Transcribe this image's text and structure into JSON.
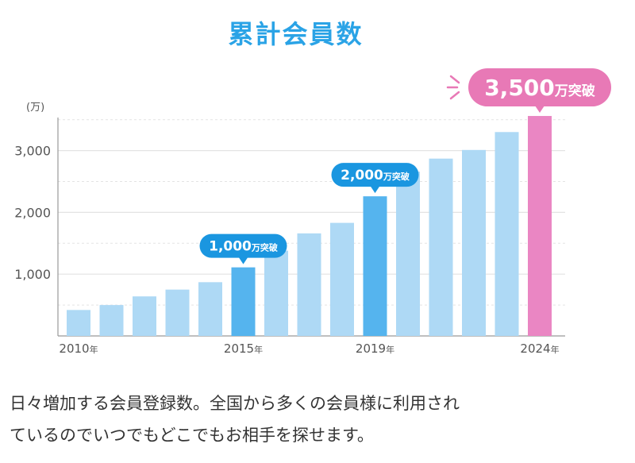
{
  "header": {
    "title": "累計会員数"
  },
  "chart_data": {
    "type": "bar",
    "unit_label": "(万)",
    "categories": [
      "2010",
      "2011",
      "2012",
      "2013",
      "2014",
      "2015",
      "2016",
      "2017",
      "2018",
      "2019",
      "2020",
      "2021",
      "2022",
      "2023",
      "2024"
    ],
    "values": [
      420,
      500,
      640,
      750,
      870,
      1110,
      1380,
      1660,
      1830,
      2260,
      2660,
      2870,
      3010,
      3300,
      3560
    ],
    "x_tick_labels": [
      {
        "index": 0,
        "text": "2010",
        "suffix": "年"
      },
      {
        "index": 5,
        "text": "2015",
        "suffix": "年"
      },
      {
        "index": 9,
        "text": "2019",
        "suffix": "年"
      },
      {
        "index": 14,
        "text": "2024",
        "suffix": "年"
      }
    ],
    "y_ticks": [
      1000,
      2000,
      3000
    ],
    "y_tick_labels": [
      "1,000",
      "2,000",
      "3,000"
    ],
    "ylim": [
      0,
      3600
    ],
    "grid": true,
    "highlights": [
      {
        "index": 5,
        "style": "blue",
        "number": "1,000",
        "suffix": "万突破"
      },
      {
        "index": 9,
        "style": "blue",
        "number": "2,000",
        "suffix": "万突破"
      },
      {
        "index": 14,
        "style": "pink",
        "number": "3,500",
        "suffix": "万突破"
      }
    ],
    "colors": {
      "bar": "#aed9f5",
      "bar_highlight": "#55b4ee",
      "bar_final": "#ea86c3",
      "callout_blue": "#1a96e0",
      "callout_pink": "#e879b6",
      "grid": "#e3e3e3",
      "axis": "#999999",
      "text": "#555555"
    }
  },
  "caption": {
    "line1": "日々増加する会員登録数。全国から多くの会員様に利用され",
    "line2": "ているのでいつでもどこでもお相手を探せます。"
  }
}
